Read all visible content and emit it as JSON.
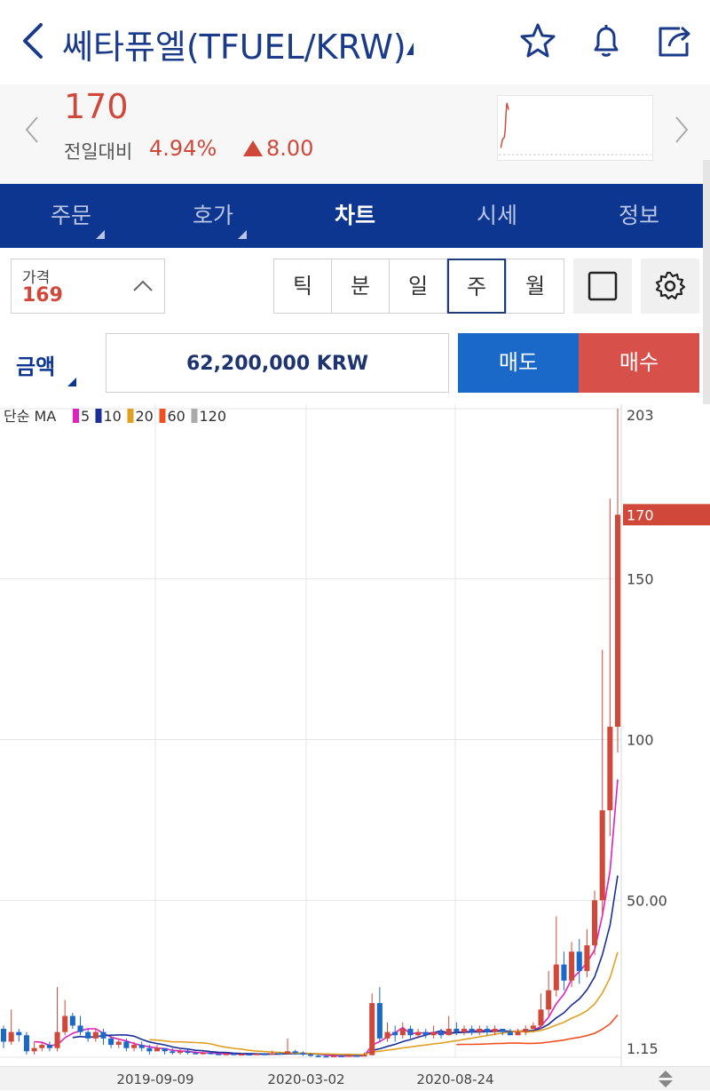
{
  "header": {
    "title": "쎄타퓨엘(TFUEL/KRW)",
    "icons": [
      "back-arrow-icon",
      "star-icon",
      "bell-icon",
      "share-icon"
    ]
  },
  "quote": {
    "price": "170",
    "change_label": "전일대비",
    "change_pct": "4.94%",
    "change_value": "8.00",
    "up_color": "#d0483a"
  },
  "tabs": [
    {
      "label": "주문"
    },
    {
      "label": "호가"
    },
    {
      "label": "차트"
    },
    {
      "label": "시세"
    },
    {
      "label": "정보"
    }
  ],
  "active_tab": "차트",
  "price_selector": {
    "label": "가격",
    "value": "169"
  },
  "periods": [
    {
      "label": "틱"
    },
    {
      "label": "분"
    },
    {
      "label": "일"
    },
    {
      "label": "주"
    },
    {
      "label": "월"
    }
  ],
  "selected_period": "주",
  "order": {
    "amount_label": "금액",
    "amount_value": "62,200,000 KRW",
    "sell_label": "매도",
    "buy_label": "매수",
    "sell_color": "#1a68c8",
    "buy_color": "#d7504a"
  },
  "chart_data": {
    "type": "candlestick",
    "title": "",
    "legend_prefix": "단순 MA",
    "moving_averages": [
      {
        "name": "5",
        "color": "#e020c0"
      },
      {
        "name": "10",
        "color": "#1b2f9a"
      },
      {
        "name": "20",
        "color": "#e0a020"
      },
      {
        "name": "60",
        "color": "#f05020"
      },
      {
        "name": "120",
        "color": "#aaaaaa"
      }
    ],
    "y_ticks": [
      "203",
      "150",
      "100",
      "50.00",
      "1.15"
    ],
    "y_tick_values": [
      203,
      150,
      100,
      50,
      1.15
    ],
    "ylim": [
      1.15,
      203
    ],
    "x_ticks": [
      "2019-09-09",
      "2020-03-02",
      "2020-08-24"
    ],
    "current_price_label": "170",
    "current_price": 170,
    "up_color": "#d0483a",
    "down_color": "#1a68c8",
    "candles": [
      [
        10,
        6,
        11,
        4
      ],
      [
        6,
        9,
        16,
        5
      ],
      [
        9,
        8,
        10,
        6
      ],
      [
        8,
        3,
        9,
        2
      ],
      [
        3,
        4,
        6,
        2
      ],
      [
        4,
        5,
        6,
        3
      ],
      [
        5,
        4,
        6,
        3
      ],
      [
        4,
        9,
        23,
        3
      ],
      [
        9,
        14,
        19,
        8
      ],
      [
        14,
        11,
        15,
        10
      ],
      [
        11,
        9,
        14,
        8
      ],
      [
        9,
        7,
        10,
        6
      ],
      [
        7,
        9,
        10,
        6
      ],
      [
        9,
        7,
        10,
        5
      ],
      [
        7,
        5,
        8,
        4
      ],
      [
        5,
        6,
        7,
        4
      ],
      [
        6,
        4,
        7,
        3
      ],
      [
        4,
        5,
        6,
        3
      ],
      [
        5,
        4,
        6,
        3
      ],
      [
        4,
        3,
        5,
        2
      ],
      [
        3,
        4,
        5,
        3
      ],
      [
        4,
        3,
        4,
        2
      ],
      [
        3,
        2.5,
        4,
        2
      ],
      [
        2.5,
        3,
        4,
        2
      ],
      [
        3,
        2.5,
        3.5,
        2
      ],
      [
        2.5,
        2.2,
        3,
        2
      ],
      [
        2.2,
        2.5,
        3,
        2
      ],
      [
        2.5,
        2.2,
        3,
        2
      ],
      [
        2.2,
        2,
        2.6,
        1.8
      ],
      [
        2,
        2.2,
        2.6,
        1.8
      ],
      [
        2.2,
        2,
        2.5,
        1.8
      ],
      [
        2,
        2.1,
        2.4,
        1.8
      ],
      [
        2.1,
        2,
        2.4,
        1.7
      ],
      [
        2,
        2.2,
        2.5,
        1.8
      ],
      [
        2.2,
        2.1,
        2.5,
        1.8
      ],
      [
        2.1,
        2.4,
        3.2,
        2
      ],
      [
        2.4,
        2.2,
        2.7,
        2
      ],
      [
        2.2,
        3,
        7,
        2
      ],
      [
        3,
        2.5,
        3.5,
        2
      ],
      [
        2.5,
        2,
        3,
        1.5
      ],
      [
        2,
        1.6,
        2.5,
        1.3
      ],
      [
        1.6,
        1.5,
        2,
        1.2
      ],
      [
        1.5,
        1.4,
        1.8,
        1.2
      ],
      [
        1.4,
        1.6,
        2,
        1.3
      ],
      [
        1.6,
        1.5,
        1.9,
        1.3
      ],
      [
        1.5,
        1.7,
        2.1,
        1.4
      ],
      [
        1.7,
        1.6,
        2,
        1.4
      ],
      [
        1.6,
        1.8,
        2.6,
        1.5
      ],
      [
        1.8,
        18,
        21,
        1.7
      ],
      [
        18,
        7,
        23,
        6
      ],
      [
        7,
        9,
        12,
        6
      ],
      [
        9,
        8,
        11,
        6
      ],
      [
        8,
        10,
        12,
        7
      ],
      [
        10,
        8,
        11,
        7
      ],
      [
        8,
        9,
        10,
        7
      ],
      [
        9,
        8,
        10,
        7
      ],
      [
        8,
        9,
        11,
        7
      ],
      [
        9,
        8,
        10,
        7
      ],
      [
        8,
        10,
        14,
        8
      ],
      [
        10,
        9,
        12,
        8
      ],
      [
        9,
        10,
        11,
        8
      ],
      [
        10,
        9,
        11,
        8
      ],
      [
        9,
        10,
        11,
        8
      ],
      [
        10,
        9,
        11,
        8
      ],
      [
        9,
        10,
        11,
        8
      ],
      [
        10,
        9,
        10,
        8
      ],
      [
        9,
        8,
        10,
        8
      ],
      [
        8,
        9,
        10,
        8
      ],
      [
        9,
        10,
        11,
        8
      ],
      [
        10,
        11,
        12,
        9
      ],
      [
        11,
        16,
        21,
        10
      ],
      [
        16,
        22,
        28,
        14
      ],
      [
        22,
        30,
        45,
        20
      ],
      [
        30,
        25,
        34,
        22
      ],
      [
        25,
        34,
        37,
        23
      ],
      [
        34,
        28,
        38,
        24
      ],
      [
        28,
        36,
        41,
        26
      ],
      [
        36,
        50,
        53,
        33
      ],
      [
        50,
        78,
        128,
        46
      ],
      [
        78,
        104,
        175,
        70
      ],
      [
        104,
        170,
        203,
        96
      ]
    ]
  }
}
